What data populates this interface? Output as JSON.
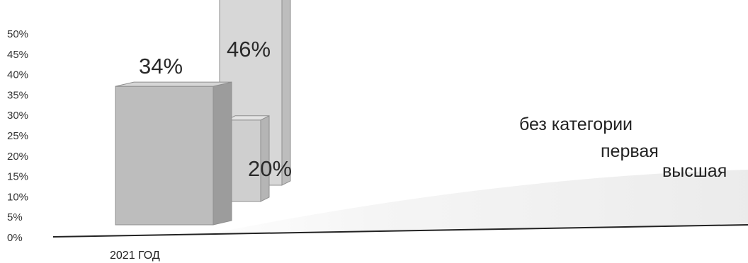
{
  "chart_data": {
    "type": "bar",
    "title": "",
    "xlabel": "",
    "ylabel": "",
    "categories": [
      "2021 ГОД"
    ],
    "ylim": [
      0,
      50
    ],
    "yticks": [
      "0%",
      "5%",
      "10%",
      "15%",
      "20%",
      "25%",
      "30%",
      "35%",
      "40%",
      "45%",
      "50%"
    ],
    "series": [
      {
        "name": "без категории",
        "values": [
          34
        ],
        "label": "34%"
      },
      {
        "name": "первая",
        "values": [
          20
        ],
        "label": "20%"
      },
      {
        "name": "высшая",
        "values": [
          46
        ],
        "label": "46%"
      }
    ],
    "legend_position": "right",
    "grid": false,
    "style": "3d-bars-grayscale"
  }
}
